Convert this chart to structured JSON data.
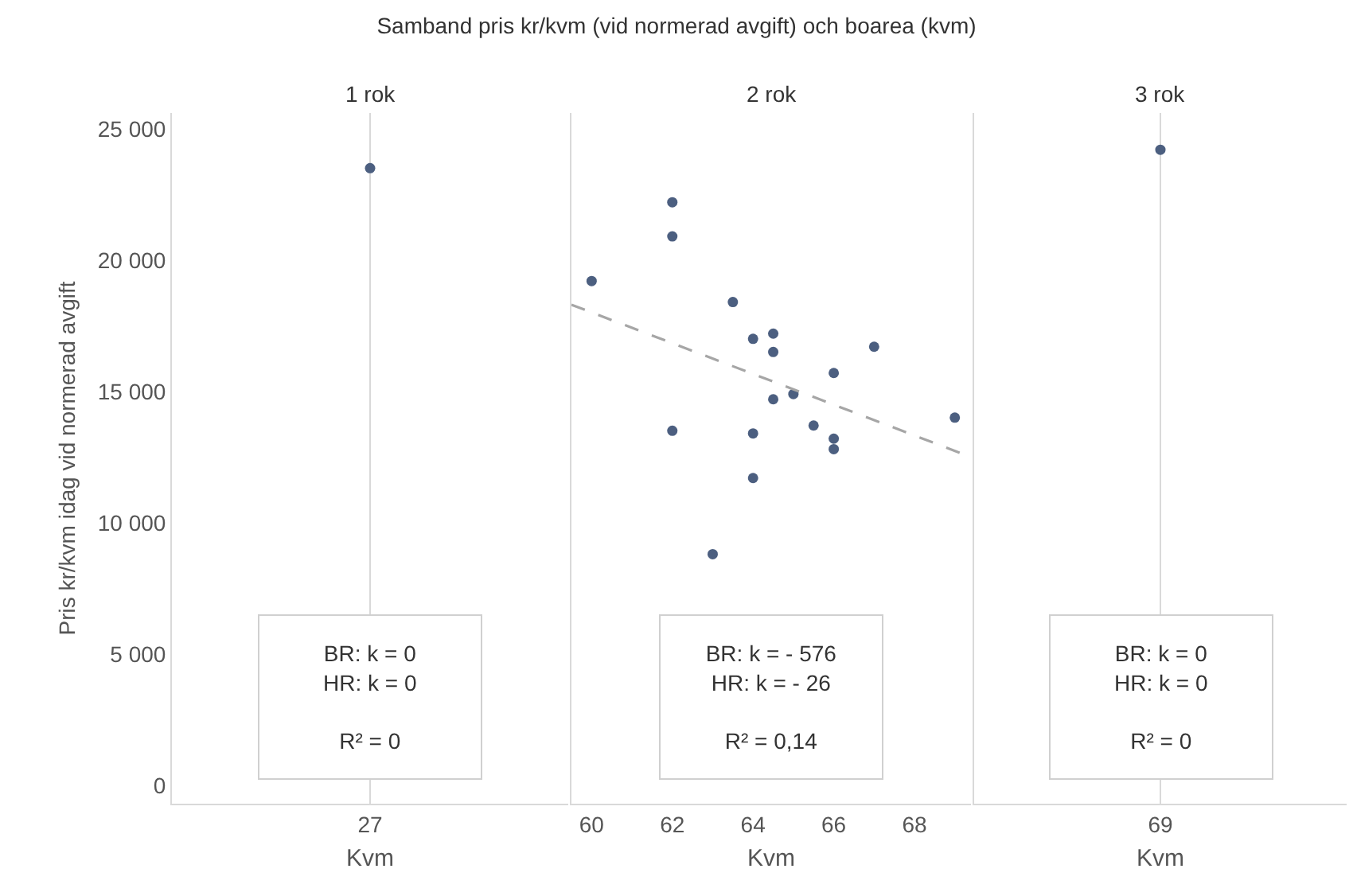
{
  "chart_data": [
    {
      "type": "scatter",
      "title": "Samband pris kr/kvm (vid normerad avgift) och boarea (kvm)",
      "subtitle": "1 rok",
      "xlabel": "Kvm",
      "ylabel": "Pris kr/kvm idag vid normerad avgift",
      "grid": "x",
      "categories": [
        "27"
      ],
      "ylim": [
        -700,
        25600
      ],
      "yticks": [
        0,
        {
          "value": 5000,
          "label": "5 000"
        },
        {
          "value": 10000,
          "label": "10 000"
        },
        {
          "value": 15000,
          "label": "15 000"
        },
        {
          "value": 20000,
          "label": "20 000"
        },
        {
          "value": 25000,
          "label": "25 000"
        }
      ],
      "series": [
        {
          "type": "scatter",
          "marker": "circle",
          "color": "#4c5f80",
          "values": [
            23500
          ]
        }
      ],
      "annotations": [
        "BR: k = 0\nHR: k = 0\n\nR² = 0"
      ]
    },
    {
      "type": "scatter",
      "subtitle": "2 rok",
      "xlabel": "Kvm",
      "grid": false,
      "tick_labels": "x",
      "xlim": [
        59.5,
        69.4
      ],
      "xticks": [
        60,
        62,
        64,
        66,
        68
      ],
      "ylim": [
        -700,
        25600
      ],
      "series": [
        {
          "type": "scatter",
          "marker": "circle",
          "color": "#4c5f80",
          "x": [
            60,
            62,
            62,
            63.5,
            64,
            64.5,
            64.5,
            66,
            67,
            65,
            64.5,
            62,
            64,
            65.5,
            66,
            66,
            69,
            64,
            63
          ],
          "values": [
            19200,
            22200,
            20900,
            18400,
            17000,
            17200,
            16500,
            15700,
            16700,
            14900,
            14700,
            13500,
            13400,
            13700,
            13200,
            12800,
            14000,
            11700,
            8800
          ]
        },
        {
          "type": "line",
          "color": "#a6a6a6",
          "line_style": "dashed",
          "x": [
            59.5,
            69.4
          ],
          "values": [
            18300,
            12500
          ]
        }
      ],
      "annotations": [
        "BR: k = - 576\nHR: k = - 26\n\nR² = 0,14"
      ]
    },
    {
      "type": "scatter",
      "subtitle": "3 rok",
      "xlabel": "Kvm",
      "grid": "x",
      "tick_labels": "x",
      "categories": [
        "69"
      ],
      "ylim": [
        -700,
        25600
      ],
      "series": [
        {
          "type": "scatter",
          "marker": "circle",
          "color": "#4c5f80",
          "values": [
            24200
          ]
        }
      ],
      "annotations": [
        "BR: k = 0\nHR: k = 0\n\nR² = 0"
      ]
    }
  ]
}
